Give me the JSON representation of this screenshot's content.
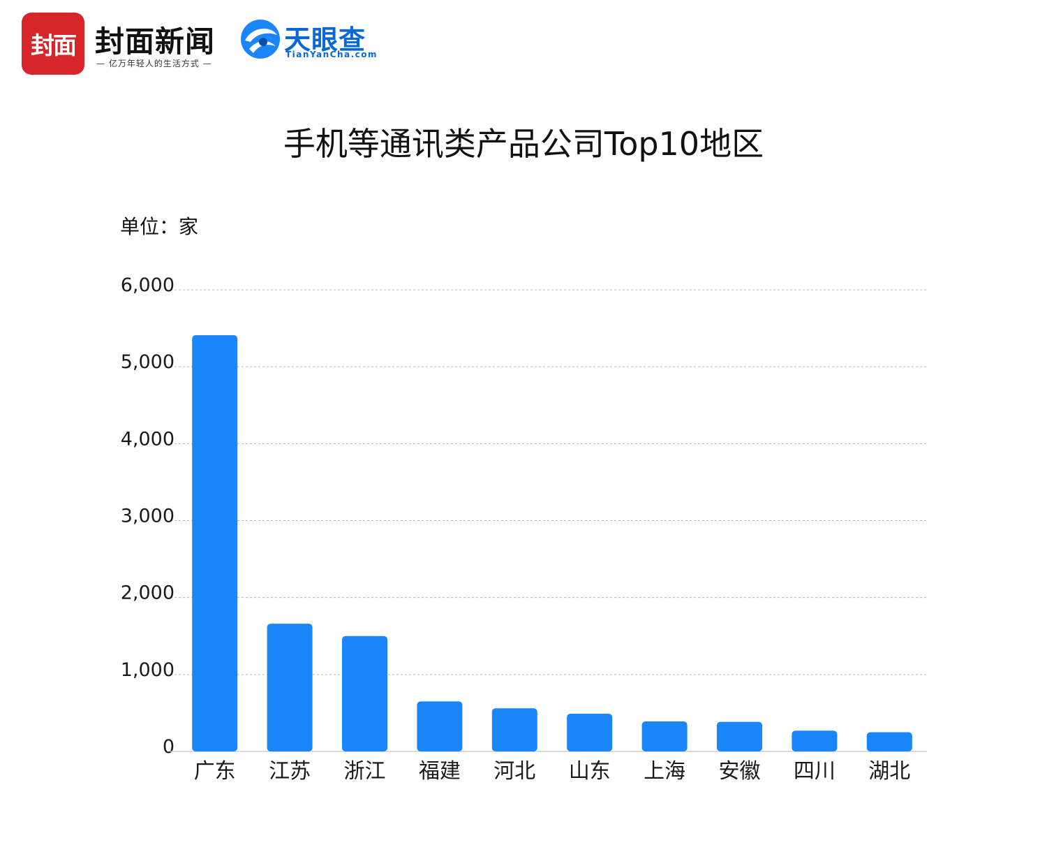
{
  "header": {
    "brand_logo_text": "封面",
    "brand_name": "封面新闻",
    "brand_slogan": "— 亿万年轻人的生活方式 —",
    "partner_name": "天眼查",
    "partner_domain": "TianYanCha.com"
  },
  "colors": {
    "bar": "#1a86f9",
    "brand_red": "#d7262a",
    "partner_blue": "#0a67d6"
  },
  "chart_data": {
    "type": "bar",
    "title": "手机等通讯类产品公司Top10地区",
    "unit_label": "单位：家",
    "categories": [
      "广东",
      "江苏",
      "浙江",
      "福建",
      "河北",
      "山东",
      "上海",
      "安徽",
      "四川",
      "湖北"
    ],
    "values": [
      5410,
      1660,
      1500,
      650,
      560,
      490,
      390,
      385,
      270,
      250
    ],
    "ylim": [
      0,
      6000
    ],
    "yticks": [
      0,
      1000,
      2000,
      3000,
      4000,
      5000,
      6000
    ],
    "ytick_labels": [
      "0",
      "1,000",
      "2,000",
      "3,000",
      "4,000",
      "5,000",
      "6,000"
    ],
    "grid": true,
    "xlabel": "",
    "ylabel": ""
  }
}
